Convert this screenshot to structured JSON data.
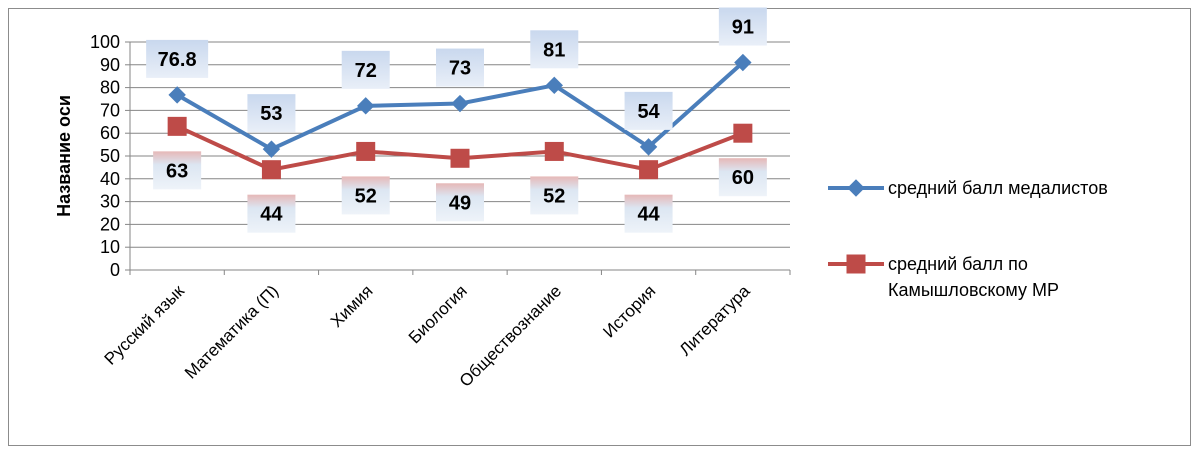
{
  "chart_data": {
    "type": "line",
    "title": "",
    "xlabel": "",
    "ylabel": "Название оси",
    "ylim": [
      0,
      100
    ],
    "yticks": [
      0,
      10,
      20,
      30,
      40,
      50,
      60,
      70,
      80,
      90,
      100
    ],
    "grid": true,
    "legend_position": "right",
    "categories": [
      "Русский язык",
      "Математика (П)",
      "Химия",
      "Биология",
      "Обществознание",
      "История",
      "Литература"
    ],
    "series": [
      {
        "name": "средний балл медалистов",
        "values": [
          76.8,
          53,
          72,
          73,
          81,
          54,
          91
        ],
        "labels": [
          "76.8",
          "53",
          "72",
          "73",
          "81",
          "54",
          "91"
        ],
        "color": "#4a7ebb",
        "marker": "diamond"
      },
      {
        "name": "средний балл по Камышловскому МР",
        "legend_lines": [
          "средний балл по",
          "Камышловскому МР"
        ],
        "values": [
          63,
          44,
          52,
          49,
          52,
          44,
          60
        ],
        "labels": [
          "63",
          "44",
          "52",
          "49",
          "52",
          "44",
          "60"
        ],
        "color": "#be4b48",
        "marker": "square"
      }
    ]
  }
}
